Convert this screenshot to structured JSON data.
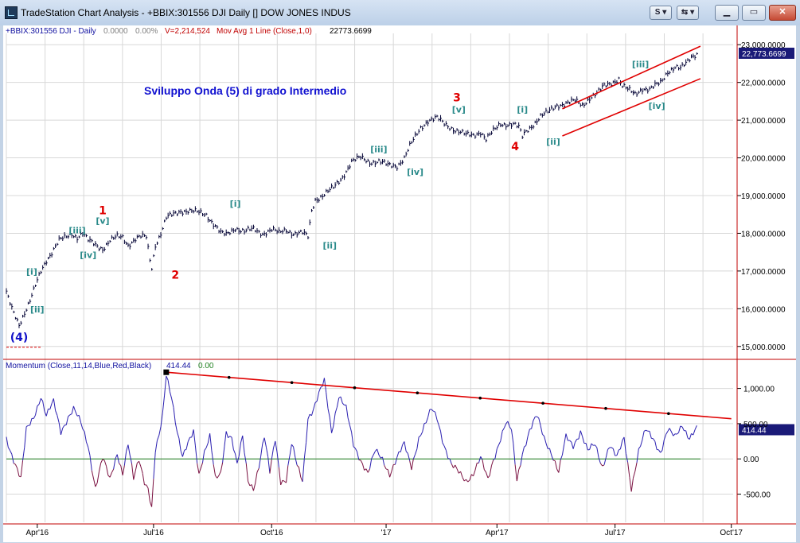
{
  "window": {
    "title": "TradeStation Chart Analysis - +BBIX:301556 DJI Daily [] DOW JONES INDUS",
    "btn_s": "S",
    "btn_link": "⇆"
  },
  "header": {
    "symbol": "+BBIX:301556 DJI - Daily",
    "change": "0.0000",
    "pct": "0.00%",
    "volume": "V=2,214,524",
    "indicator": "Mov Avg 1 Line (Close,1,0)",
    "indicator_value": "22773.6699"
  },
  "colors": {
    "price": "#000033",
    "channel": "#e00000",
    "wave_label": "#2a8a8a",
    "wave_major": "#e00000",
    "wave_blue": "#1010c8",
    "title": "#1010d0",
    "momentum": "#2a1fb0",
    "momentum_neg": "#7a1040",
    "zero_line": "#208020",
    "axis_line": "#c00000",
    "last_value_bg": "#1a1a78"
  },
  "chart_data": [
    {
      "type": "line",
      "name": "price",
      "annotation_title": "Sviluppo Onda (5) di grado Intermedio",
      "y_ticks": [
        15000,
        16000,
        17000,
        18000,
        19000,
        20000,
        21000,
        22000,
        23000
      ],
      "y_tick_labels": [
        "15,000.0000",
        "16,000.0000",
        "17,000.0000",
        "18,000.0000",
        "19,000.0000",
        "20,000.0000",
        "21,000.0000",
        "22,000.0000",
        "23,000.0000"
      ],
      "ylim": [
        14700,
        23300
      ],
      "last_value": "22,773.6699",
      "last_value_num": 22773.67,
      "x_labels": [
        "Apr'16",
        "Jul'16",
        "Oct'16",
        "'17",
        "Apr'17",
        "Jul'17",
        "Oct'17"
      ],
      "x_label_index": [
        17,
        81,
        146,
        209,
        270,
        335,
        399
      ],
      "series": [
        {
          "points": [
            [
              0,
              16400
            ],
            [
              3,
              16000
            ],
            [
              7,
              15600
            ],
            [
              10,
              15900
            ],
            [
              13,
              16200
            ],
            [
              16,
              16600
            ],
            [
              19,
              17000
            ],
            [
              22,
              17300
            ],
            [
              25,
              17500
            ],
            [
              29,
              17800
            ],
            [
              33,
              17900
            ],
            [
              36,
              18000
            ],
            [
              39,
              17900
            ],
            [
              42,
              18000
            ],
            [
              45,
              17800
            ],
            [
              49,
              17700
            ],
            [
              53,
              17600
            ],
            [
              57,
              17800
            ],
            [
              61,
              17900
            ],
            [
              64,
              17900
            ],
            [
              67,
              17700
            ],
            [
              71,
              17850
            ],
            [
              74,
              17900
            ],
            [
              77,
              17900
            ],
            [
              79,
              17300
            ],
            [
              80,
              17100
            ],
            [
              82,
              17700
            ],
            [
              85,
              18000
            ],
            [
              88,
              18400
            ],
            [
              92,
              18500
            ],
            [
              96,
              18600
            ],
            [
              100,
              18600
            ],
            [
              105,
              18550
            ],
            [
              110,
              18500
            ],
            [
              115,
              18200
            ],
            [
              118,
              18000
            ],
            [
              121,
              17950
            ],
            [
              126,
              18150
            ],
            [
              131,
              18050
            ],
            [
              136,
              18100
            ],
            [
              141,
              18000
            ],
            [
              146,
              18100
            ],
            [
              150,
              18000
            ],
            [
              154,
              18100
            ],
            [
              158,
              18000
            ],
            [
              163,
              18000
            ],
            [
              166,
              17900
            ],
            [
              168,
              18600
            ],
            [
              170,
              18900
            ],
            [
              174,
              19000
            ],
            [
              180,
              19200
            ],
            [
              185,
              19500
            ],
            [
              190,
              19900
            ],
            [
              195,
              20000
            ],
            [
              200,
              19900
            ],
            [
              205,
              19900
            ],
            [
              210,
              19800
            ],
            [
              215,
              19800
            ],
            [
              219,
              20000
            ],
            [
              222,
              20300
            ],
            [
              228,
              20800
            ],
            [
              232,
              21000
            ],
            [
              237,
              21050
            ],
            [
              241,
              20900
            ],
            [
              245,
              20800
            ],
            [
              249,
              20700
            ],
            [
              253,
              20600
            ],
            [
              257,
              20600
            ],
            [
              261,
              20700
            ],
            [
              264,
              20500
            ],
            [
              266,
              20600
            ],
            [
              268,
              20700
            ],
            [
              272,
              20900
            ],
            [
              275,
              20900
            ],
            [
              279,
              20900
            ],
            [
              282,
              20800
            ],
            [
              284,
              20550
            ],
            [
              286,
              20700
            ],
            [
              290,
              20900
            ],
            [
              294,
              21100
            ],
            [
              298,
              21200
            ],
            [
              303,
              21400
            ],
            [
              308,
              21450
            ],
            [
              313,
              21500
            ],
            [
              317,
              21400
            ],
            [
              321,
              21600
            ],
            [
              325,
              21700
            ],
            [
              329,
              21900
            ],
            [
              333,
              22000
            ],
            [
              337,
              22100
            ],
            [
              339,
              21900
            ],
            [
              342,
              21800
            ],
            [
              346,
              21700
            ],
            [
              350,
              21850
            ],
            [
              354,
              21800
            ],
            [
              357,
              21900
            ],
            [
              360,
              22000
            ],
            [
              364,
              22300
            ],
            [
              368,
              22400
            ],
            [
              371,
              22350
            ],
            [
              374,
              22500
            ],
            [
              377,
              22700
            ],
            [
              380,
              22774
            ]
          ]
        }
      ],
      "channel_upper": [
        [
          306,
          21300
        ],
        [
          382,
          22960
        ]
      ],
      "channel_lower": [
        [
          306,
          20580
        ],
        [
          382,
          22100
        ]
      ],
      "baseline": [
        [
          0,
          14980
        ],
        [
          19,
          14980
        ]
      ],
      "wave_labels": [
        {
          "text": "(4)",
          "i": 7,
          "v": 15140,
          "kind": "blue"
        },
        {
          "text": "[i]",
          "i": 14,
          "v": 16900,
          "kind": "teal"
        },
        {
          "text": "[ii]",
          "i": 17,
          "v": 15900,
          "kind": "teal"
        },
        {
          "text": "[iii]",
          "i": 39,
          "v": 18000,
          "kind": "teal"
        },
        {
          "text": "[iv]",
          "i": 45,
          "v": 17350,
          "kind": "teal"
        },
        {
          "text": "[v]",
          "i": 53,
          "v": 18250,
          "kind": "teal"
        },
        {
          "text": "1",
          "i": 53,
          "v": 18500,
          "kind": "major"
        },
        {
          "text": "2",
          "i": 93,
          "v": 16800,
          "kind": "major"
        },
        {
          "text": "[i]",
          "i": 126,
          "v": 18700,
          "kind": "teal"
        },
        {
          "text": "[ii]",
          "i": 178,
          "v": 17600,
          "kind": "teal"
        },
        {
          "text": "[iii]",
          "i": 205,
          "v": 20150,
          "kind": "teal"
        },
        {
          "text": "[iv]",
          "i": 225,
          "v": 19550,
          "kind": "teal"
        },
        {
          "text": "[v]",
          "i": 249,
          "v": 21200,
          "kind": "teal"
        },
        {
          "text": "3",
          "i": 248,
          "v": 21500,
          "kind": "major"
        },
        {
          "text": "[i]",
          "i": 284,
          "v": 21200,
          "kind": "teal"
        },
        {
          "text": "4",
          "i": 280,
          "v": 20200,
          "kind": "major"
        },
        {
          "text": "[ii]",
          "i": 301,
          "v": 20350,
          "kind": "teal"
        },
        {
          "text": "[iii]",
          "i": 349,
          "v": 22400,
          "kind": "teal"
        },
        {
          "text": "[iv]",
          "i": 358,
          "v": 21300,
          "kind": "teal"
        }
      ]
    },
    {
      "type": "line",
      "name": "Momentum (Close,11,14,Blue,Red,Black)",
      "legend_value": "414.44",
      "legend_zero": "0.00",
      "y_ticks": [
        -500,
        0,
        500,
        1000
      ],
      "y_tick_labels": [
        "-500.00",
        "0.00",
        "500.00",
        "1,000.00"
      ],
      "ylim": [
        -900,
        1300
      ],
      "last_value": "414.44",
      "last_value_num": 414.44,
      "series": [
        {
          "points": [
            [
              0,
              300
            ],
            [
              4,
              0
            ],
            [
              8,
              -300
            ],
            [
              11,
              400
            ],
            [
              15,
              600
            ],
            [
              19,
              900
            ],
            [
              22,
              600
            ],
            [
              26,
              800
            ],
            [
              30,
              400
            ],
            [
              34,
              600
            ],
            [
              37,
              700
            ],
            [
              41,
              500
            ],
            [
              45,
              200
            ],
            [
              49,
              -400
            ],
            [
              53,
              0
            ],
            [
              57,
              -300
            ],
            [
              61,
              100
            ],
            [
              64,
              -200
            ],
            [
              67,
              200
            ],
            [
              70,
              -300
            ],
            [
              73,
              0
            ],
            [
              76,
              -300
            ],
            [
              78,
              -400
            ],
            [
              80,
              -700
            ],
            [
              82,
              100
            ],
            [
              84,
              300
            ],
            [
              86,
              600
            ],
            [
              88,
              1200
            ],
            [
              91,
              900
            ],
            [
              94,
              400
            ],
            [
              97,
              0
            ],
            [
              100,
              200
            ],
            [
              103,
              400
            ],
            [
              106,
              -200
            ],
            [
              109,
              100
            ],
            [
              112,
              300
            ],
            [
              115,
              -300
            ],
            [
              118,
              -200
            ],
            [
              121,
              400
            ],
            [
              124,
              300
            ],
            [
              127,
              -100
            ],
            [
              130,
              300
            ],
            [
              133,
              -300
            ],
            [
              136,
              -400
            ],
            [
              139,
              -100
            ],
            [
              142,
              300
            ],
            [
              145,
              -200
            ],
            [
              148,
              300
            ],
            [
              151,
              -300
            ],
            [
              154,
              -300
            ],
            [
              157,
              200
            ],
            [
              160,
              -100
            ],
            [
              163,
              -300
            ],
            [
              166,
              600
            ],
            [
              169,
              700
            ],
            [
              172,
              900
            ],
            [
              175,
              1100
            ],
            [
              179,
              400
            ],
            [
              183,
              900
            ],
            [
              187,
              700
            ],
            [
              191,
              200
            ],
            [
              195,
              0
            ],
            [
              199,
              -200
            ],
            [
              203,
              100
            ],
            [
              207,
              0
            ],
            [
              211,
              -200
            ],
            [
              215,
              0
            ],
            [
              219,
              200
            ],
            [
              223,
              -100
            ],
            [
              227,
              300
            ],
            [
              231,
              500
            ],
            [
              234,
              700
            ],
            [
              237,
              600
            ],
            [
              241,
              200
            ],
            [
              245,
              -100
            ],
            [
              249,
              -200
            ],
            [
              253,
              -300
            ],
            [
              257,
              -200
            ],
            [
              261,
              0
            ],
            [
              265,
              -300
            ],
            [
              268,
              0
            ],
            [
              272,
              300
            ],
            [
              275,
              500
            ],
            [
              278,
              400
            ],
            [
              281,
              -300
            ],
            [
              284,
              100
            ],
            [
              288,
              400
            ],
            [
              292,
              600
            ],
            [
              296,
              300
            ],
            [
              300,
              100
            ],
            [
              304,
              -200
            ],
            [
              308,
              300
            ],
            [
              312,
              200
            ],
            [
              316,
              400
            ],
            [
              320,
              100
            ],
            [
              324,
              200
            ],
            [
              328,
              -100
            ],
            [
              332,
              200
            ],
            [
              336,
              0
            ],
            [
              340,
              300
            ],
            [
              344,
              -400
            ],
            [
              348,
              100
            ],
            [
              352,
              400
            ],
            [
              356,
              300
            ],
            [
              360,
              100
            ],
            [
              364,
              400
            ],
            [
              368,
              300
            ],
            [
              372,
              500
            ],
            [
              376,
              300
            ],
            [
              380,
              414
            ]
          ]
        }
      ],
      "trendline": [
        [
          88,
          1230
        ],
        [
          399,
          570
        ]
      ],
      "zero_line_x_end": 382
    }
  ]
}
